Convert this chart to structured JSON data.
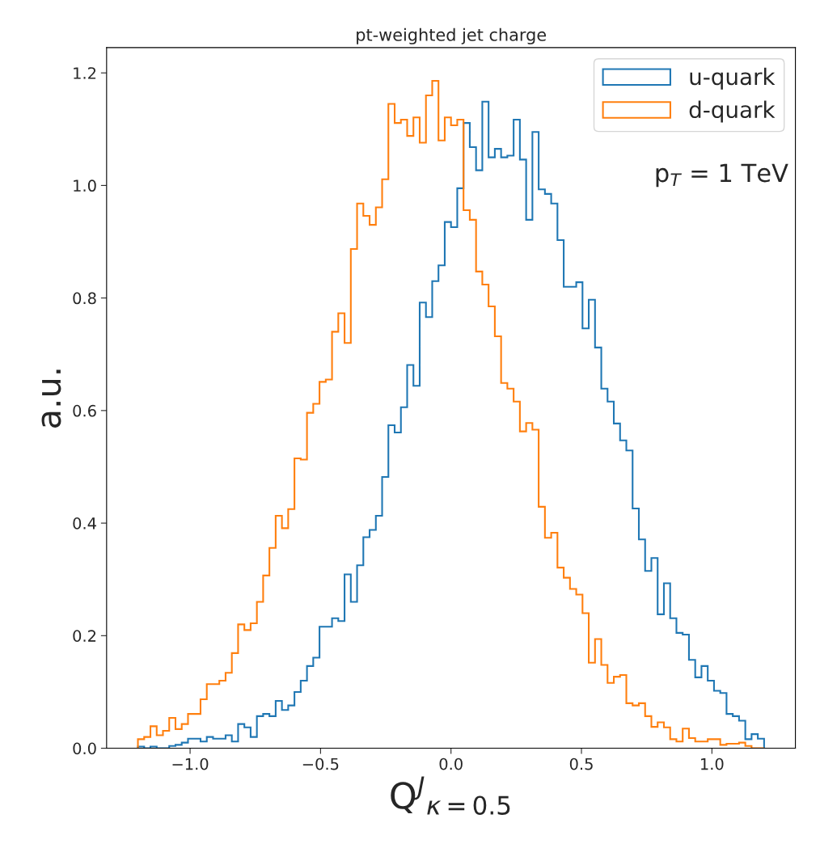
{
  "chart_data": {
    "type": "histogram",
    "title": "pt-weighted jet charge",
    "xlabel": "Q$^{J}$$_{κ=0.5}$",
    "ylabel": "a.u.",
    "annotations": [
      "p$_{T}$ = 1 TeV"
    ],
    "bins": [
      -1.2,
      -1.176,
      -1.152,
      -1.128,
      -1.104,
      -1.08,
      -1.056,
      -1.032,
      -1.008,
      -0.984,
      -0.96,
      -0.936,
      -0.912,
      -0.888,
      -0.864,
      -0.84,
      -0.816,
      -0.792,
      -0.768,
      -0.744,
      -0.72,
      -0.696,
      -0.672,
      -0.648,
      -0.624,
      -0.6,
      -0.576,
      -0.552,
      -0.528,
      -0.504,
      -0.48,
      -0.456,
      -0.432,
      -0.408,
      -0.384,
      -0.36,
      -0.336,
      -0.312,
      -0.288,
      -0.264,
      -0.24,
      -0.216,
      -0.192,
      -0.168,
      -0.144,
      -0.12,
      -0.096,
      -0.072,
      -0.048,
      -0.024,
      0.0,
      0.024,
      0.048,
      0.072,
      0.096,
      0.12,
      0.144,
      0.168,
      0.192,
      0.216,
      0.24,
      0.264,
      0.288,
      0.312,
      0.336,
      0.36,
      0.384,
      0.408,
      0.432,
      0.456,
      0.48,
      0.504,
      0.528,
      0.552,
      0.576,
      0.6,
      0.624,
      0.648,
      0.672,
      0.696,
      0.72,
      0.744,
      0.768,
      0.792,
      0.816,
      0.84,
      0.864,
      0.888,
      0.912,
      0.936,
      0.96,
      0.984,
      1.008,
      1.032,
      1.056,
      1.08,
      1.104,
      1.128,
      1.152,
      1.176,
      1.2
    ],
    "series": [
      {
        "name": "u-quark",
        "color": "#1f77b4",
        "values": [
          0.003,
          0.0,
          0.003,
          0.0,
          0.0,
          0.004,
          0.006,
          0.01,
          0.017,
          0.017,
          0.012,
          0.02,
          0.017,
          0.017,
          0.023,
          0.012,
          0.043,
          0.037,
          0.02,
          0.057,
          0.061,
          0.057,
          0.084,
          0.068,
          0.076,
          0.1,
          0.12,
          0.146,
          0.161,
          0.216,
          0.216,
          0.231,
          0.226,
          0.309,
          0.26,
          0.325,
          0.375,
          0.388,
          0.413,
          0.482,
          0.574,
          0.561,
          0.606,
          0.681,
          0.644,
          0.792,
          0.766,
          0.83,
          0.858,
          0.935,
          0.926,
          0.995,
          1.111,
          1.068,
          1.027,
          1.149,
          1.05,
          1.065,
          1.05,
          1.053,
          1.117,
          1.046,
          0.939,
          1.095,
          0.993,
          0.985,
          0.968,
          0.903,
          0.82,
          0.82,
          0.828,
          0.746,
          0.797,
          0.712,
          0.639,
          0.616,
          0.577,
          0.547,
          0.529,
          0.426,
          0.371,
          0.315,
          0.338,
          0.238,
          0.293,
          0.231,
          0.205,
          0.202,
          0.157,
          0.126,
          0.146,
          0.12,
          0.102,
          0.098,
          0.061,
          0.057,
          0.049,
          0.016,
          0.025,
          0.017
        ]
      },
      {
        "name": "d-quark",
        "color": "#ff7f0e",
        "values": [
          0.016,
          0.02,
          0.039,
          0.023,
          0.031,
          0.054,
          0.034,
          0.043,
          0.061,
          0.061,
          0.087,
          0.114,
          0.114,
          0.12,
          0.134,
          0.169,
          0.22,
          0.21,
          0.222,
          0.26,
          0.307,
          0.356,
          0.413,
          0.391,
          0.425,
          0.515,
          0.513,
          0.596,
          0.612,
          0.651,
          0.655,
          0.74,
          0.773,
          0.72,
          0.887,
          0.968,
          0.946,
          0.93,
          0.961,
          1.011,
          1.145,
          1.111,
          1.117,
          1.088,
          1.121,
          1.076,
          1.16,
          1.186,
          1.08,
          1.121,
          1.107,
          1.117,
          0.956,
          0.939,
          0.847,
          0.824,
          0.785,
          0.732,
          0.649,
          0.639,
          0.616,
          0.563,
          0.578,
          0.566,
          0.429,
          0.374,
          0.383,
          0.321,
          0.303,
          0.283,
          0.273,
          0.24,
          0.152,
          0.194,
          0.148,
          0.116,
          0.127,
          0.13,
          0.08,
          0.076,
          0.08,
          0.057,
          0.038,
          0.046,
          0.037,
          0.016,
          0.012,
          0.035,
          0.018,
          0.012,
          0.012,
          0.016,
          0.016,
          0.006,
          0.008,
          0.008,
          0.01,
          0.004,
          0.0,
          0.0
        ]
      }
    ],
    "xlim": [
      -1.32,
      1.32
    ],
    "ylim": [
      0,
      1.245
    ],
    "xticks": [
      {
        "value": -1.0,
        "label": "−1.0"
      },
      {
        "value": -0.5,
        "label": "−0.5"
      },
      {
        "value": 0,
        "label": "0.0"
      },
      0.5,
      {
        "value": 1,
        "label": "1.0"
      }
    ],
    "yticks": [
      {
        "value": 0,
        "label": "0.0"
      },
      0.2,
      0.4,
      0.6,
      0.8,
      {
        "value": 1,
        "label": "1.0"
      },
      1.2
    ],
    "legend": "top right",
    "grid": false
  }
}
